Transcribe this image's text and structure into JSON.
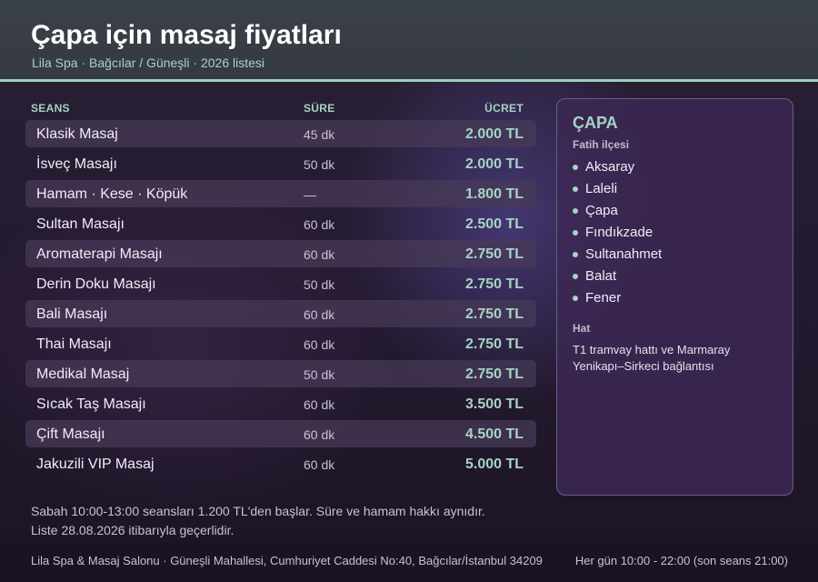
{
  "header": {
    "title": "Çapa için masaj fiyatları",
    "subtitle": "Lila Spa · Bağcılar / Güneşli · 2026 listesi"
  },
  "table": {
    "columns": {
      "name": "SEANS",
      "duration": "SÜRE",
      "price": "ÜCRET"
    },
    "rows": [
      {
        "name": "Klasik Masaj",
        "duration": "45 dk",
        "price": "2.000 TL"
      },
      {
        "name": "İsveç Masajı",
        "duration": "50 dk",
        "price": "2.000 TL"
      },
      {
        "name": "Hamam · Kese · Köpük",
        "duration": "—",
        "price": "1.800 TL"
      },
      {
        "name": "Sultan Masajı",
        "duration": "60 dk",
        "price": "2.500 TL"
      },
      {
        "name": "Aromaterapi Masajı",
        "duration": "60 dk",
        "price": "2.750 TL"
      },
      {
        "name": "Derin Doku Masajı",
        "duration": "50 dk",
        "price": "2.750 TL"
      },
      {
        "name": "Bali Masajı",
        "duration": "60 dk",
        "price": "2.750 TL"
      },
      {
        "name": "Thai Masajı",
        "duration": "60 dk",
        "price": "2.750 TL"
      },
      {
        "name": "Medikal Masaj",
        "duration": "50 dk",
        "price": "2.750 TL"
      },
      {
        "name": "Sıcak Taş Masajı",
        "duration": "60 dk",
        "price": "3.500 TL"
      },
      {
        "name": "Çift Masajı",
        "duration": "60 dk",
        "price": "4.500 TL"
      },
      {
        "name": "Jakuzili VIP Masaj",
        "duration": "60 dk",
        "price": "5.000 TL"
      }
    ]
  },
  "side": {
    "title": "ÇAPA",
    "district": "Fatih ilçesi",
    "neighborhoods": [
      "Aksaray",
      "Laleli",
      "Çapa",
      "Fındıkzade",
      "Sultanahmet",
      "Balat",
      "Fener"
    ],
    "line_heading": "Hat",
    "line_text": "T1 tramvay hattı ve Marmaray Yenikapı–Sirkeci bağlantısı"
  },
  "notes": {
    "line1": "Sabah 10:00-13:00 seansları 1.200 TL'den başlar. Süre ve hamam hakkı aynıdır.",
    "line2": "Liste 28.08.2026 itibarıyla geçerlidir."
  },
  "footer": {
    "address": "Lila Spa & Masaj Salonu · Güneşli Mahallesi, Cumhuriyet Caddesi No:40, Bağcılar/İstanbul 34209",
    "hours": "Her gün 10:00 - 22:00 (son seans 21:00)"
  },
  "colors": {
    "accent": "#a7d3c4",
    "header_bg": "#3b4149",
    "panel_bg": "#3c2854",
    "row_alt": "#483a58"
  }
}
